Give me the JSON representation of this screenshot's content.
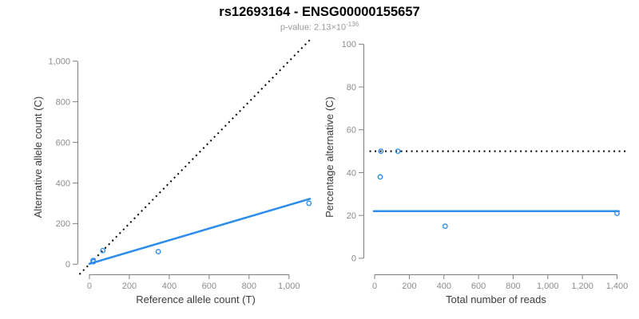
{
  "header": {
    "title": "rs12693164 - ENSG00000155657",
    "subtitle_prefix": "p-value: 2.13×10",
    "subtitle_exponent": "-136"
  },
  "colors": {
    "accent_blue": "#2b8cee",
    "dotted_line_black": "#000000",
    "axis_gray": "#7e7e7e",
    "tick_label_gray": "#8c8c8c",
    "axis_title_dark": "#3c3c3c",
    "subtitle_gray": "#9a9a9a"
  },
  "chart_data": [
    {
      "name": "alt-vs-ref-allele-counts",
      "type": "scatter",
      "xlabel": "Reference allele count (T)",
      "ylabel": "Alternative allele count (C)",
      "xlim": [
        -60,
        1125
      ],
      "ylim": [
        -50,
        1105
      ],
      "grid": false,
      "x_ticks": {
        "values": [
          0,
          200,
          400,
          600,
          800,
          1000
        ],
        "labels": [
          "0",
          "200",
          "400",
          "600",
          "800",
          "1,000"
        ]
      },
      "y_ticks": {
        "values": [
          0,
          200,
          400,
          600,
          800,
          1000
        ],
        "labels": [
          "0",
          "200",
          "400",
          "600",
          "800",
          "1,000"
        ]
      },
      "points": [
        [
          18,
          18
        ],
        [
          20,
          12
        ],
        [
          67,
          67
        ],
        [
          345,
          62
        ],
        [
          1100,
          300
        ]
      ],
      "lines": [
        {
          "name": "identity-line",
          "style": "dotted",
          "color": "#000000",
          "x1": -50,
          "y1": -50,
          "x2": 1105,
          "y2": 1105
        },
        {
          "name": "fit-line",
          "style": "solid",
          "color": "#2b8cee",
          "x1": 0,
          "y1": 2,
          "x2": 1105,
          "y2": 322
        }
      ]
    },
    {
      "name": "pct-alternative-vs-total-reads",
      "type": "scatter",
      "xlabel": "Total number of reads",
      "ylabel": "Percentage alternative (C)",
      "xlim": [
        -65,
        1467
      ],
      "ylim": [
        -7.5,
        102
      ],
      "grid": false,
      "x_ticks": {
        "values": [
          0,
          200,
          400,
          600,
          800,
          1000,
          1200,
          1400
        ],
        "labels": [
          "0",
          "200",
          "400",
          "600",
          "800",
          "1,000",
          "1,200",
          "1,400"
        ]
      },
      "y_ticks": {
        "values": [
          0,
          20,
          40,
          60,
          80,
          100
        ],
        "labels": [
          "0",
          "20",
          "40",
          "60",
          "80",
          "100"
        ]
      },
      "points": [
        [
          36,
          50
        ],
        [
          32,
          38
        ],
        [
          134,
          50
        ],
        [
          407,
          15
        ],
        [
          1400,
          21
        ]
      ],
      "lines": [
        {
          "name": "expected-50pct-line",
          "style": "dotted",
          "color": "#000000",
          "x1": -30,
          "y1": 50,
          "x2": 1460,
          "y2": 50
        },
        {
          "name": "fit-line",
          "style": "solid",
          "color": "#2b8cee",
          "x1": -5,
          "y1": 22,
          "x2": 1410,
          "y2": 22
        }
      ]
    }
  ]
}
